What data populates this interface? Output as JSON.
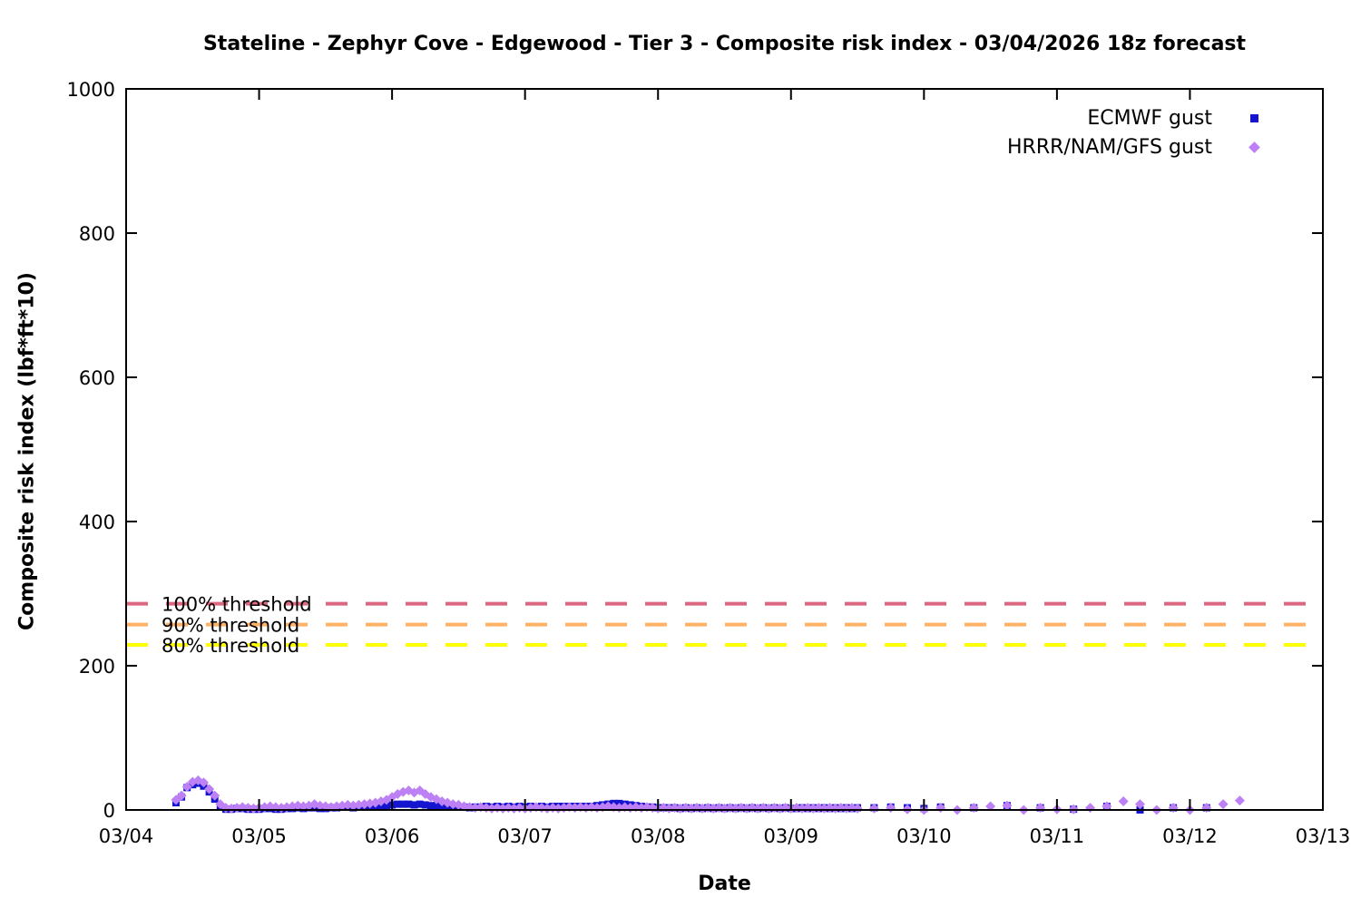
{
  "title": "Stateline - Zephyr Cove - Edgewood - Tier 3 - Composite risk index - 03/04/2026 18z forecast",
  "axes": {
    "x": {
      "label": "Date",
      "tick_labels": [
        "03/04",
        "03/05",
        "03/06",
        "03/07",
        "03/08",
        "03/09",
        "03/10",
        "03/11",
        "03/12",
        "03/13"
      ],
      "range_days": [
        0,
        9
      ]
    },
    "y": {
      "label": "Composite risk index (lbf*ft*10)",
      "tick_values": [
        0,
        200,
        400,
        600,
        800,
        1000
      ],
      "range": [
        0,
        1000
      ]
    }
  },
  "legend": {
    "position": "top-right-inside",
    "items": [
      {
        "label": "ECMWF gust",
        "marker": "square",
        "color": "#1515d0"
      },
      {
        "label": "HRRR/NAM/GFS gust",
        "marker": "diamond",
        "color": "#bd80f5"
      }
    ]
  },
  "thresholds": [
    {
      "label": "100% threshold",
      "value": 286,
      "color": "#dd6680"
    },
    {
      "label": "90% threshold",
      "value": 257,
      "color": "#ffb266"
    },
    {
      "label": "80% threshold",
      "value": 229,
      "color": "#ffff00"
    }
  ],
  "chart_data": {
    "type": "scatter",
    "title": "Stateline - Zephyr Cove - Edgewood - Tier 3 - Composite risk index - 03/04/2026 18z forecast",
    "xlabel": "Date",
    "ylabel": "Composite risk index (lbf*ft*10)",
    "x_unit": "fractional days after 03/04 00:00",
    "xlim_days": [
      0,
      9
    ],
    "ylim": [
      0,
      1000
    ],
    "grid": false,
    "series": [
      {
        "name": "ECMWF gust",
        "marker": "square",
        "color": "#1515d0",
        "dense": {
          "start_day": 0.375,
          "interval_hours": 1,
          "values": [
            10,
            18,
            31,
            35,
            37,
            33,
            25,
            15,
            5,
            1,
            1,
            2,
            2,
            1,
            1,
            1,
            2,
            2,
            1,
            1,
            2,
            2,
            3,
            2,
            3,
            3,
            2,
            2,
            3,
            3,
            4,
            4,
            3,
            4,
            4,
            5,
            5,
            6,
            6,
            7,
            8,
            8,
            8,
            7,
            8,
            7,
            6,
            6,
            5,
            5,
            4,
            4,
            4,
            3,
            4,
            4,
            5,
            4,
            5,
            4,
            5,
            4,
            5,
            4,
            5,
            4,
            5,
            4,
            5,
            5,
            5,
            5,
            5,
            5,
            5,
            5,
            6,
            7,
            8,
            9,
            9,
            8,
            7,
            6,
            5,
            4,
            4,
            3,
            3,
            3,
            3,
            2,
            3,
            2,
            3,
            2,
            3,
            2,
            3,
            2,
            3,
            2,
            3,
            2,
            3,
            2,
            3,
            2,
            3,
            2,
            3,
            2,
            2,
            3,
            2,
            3,
            2,
            3,
            2,
            3,
            2,
            3,
            2,
            3
          ]
        },
        "sparse_points": [
          [
            5.625,
            3
          ],
          [
            5.75,
            4
          ],
          [
            5.875,
            3
          ],
          [
            6.0,
            2
          ],
          [
            6.125,
            4
          ],
          [
            6.375,
            3
          ],
          [
            6.625,
            6
          ],
          [
            6.875,
            3
          ],
          [
            7.125,
            1
          ],
          [
            7.375,
            5
          ],
          [
            7.625,
            0
          ],
          [
            7.875,
            3
          ],
          [
            8.125,
            3
          ]
        ]
      },
      {
        "name": "HRRR/NAM/GFS gust",
        "marker": "diamond",
        "color": "#bd80f5",
        "dense": {
          "start_day": 0.375,
          "interval_hours": 1,
          "values": [
            14,
            20,
            32,
            39,
            41,
            38,
            29,
            20,
            8,
            3,
            2,
            3,
            4,
            3,
            2,
            3,
            4,
            5,
            4,
            3,
            4,
            5,
            6,
            5,
            6,
            8,
            6,
            5,
            4,
            5,
            6,
            7,
            6,
            7,
            8,
            9,
            10,
            12,
            14,
            18,
            22,
            25,
            27,
            24,
            27,
            22,
            18,
            15,
            12,
            10,
            8,
            7,
            5,
            4,
            3,
            4,
            3,
            2,
            3,
            2,
            3,
            2,
            3,
            2,
            3,
            4,
            3,
            2,
            3,
            2,
            3,
            4,
            3,
            4,
            3,
            4,
            3,
            4,
            5,
            4,
            3,
            4,
            3,
            4,
            3,
            4,
            3,
            2,
            3,
            2,
            3,
            2,
            3,
            2,
            3,
            2,
            3,
            2,
            3,
            2,
            3,
            2,
            3,
            2,
            3,
            2,
            3,
            2,
            3,
            2,
            3,
            2,
            3,
            2,
            3,
            2,
            3,
            2,
            3,
            2,
            3,
            2,
            3,
            2
          ]
        },
        "sparse_points": [
          [
            5.625,
            2
          ],
          [
            5.75,
            3
          ],
          [
            5.875,
            1
          ],
          [
            6.0,
            0
          ],
          [
            6.125,
            3
          ],
          [
            6.25,
            0
          ],
          [
            6.375,
            3
          ],
          [
            6.5,
            5
          ],
          [
            6.625,
            6
          ],
          [
            6.75,
            0
          ],
          [
            6.875,
            3
          ],
          [
            7.0,
            1
          ],
          [
            7.125,
            1
          ],
          [
            7.25,
            3
          ],
          [
            7.375,
            5
          ],
          [
            7.5,
            12
          ],
          [
            7.625,
            8
          ],
          [
            7.75,
            0
          ],
          [
            7.875,
            3
          ],
          [
            8.0,
            0
          ],
          [
            8.125,
            3
          ],
          [
            8.25,
            8
          ],
          [
            8.375,
            13
          ]
        ]
      }
    ],
    "threshold_lines": [
      {
        "label": "100% threshold",
        "value": 286,
        "color": "#dd6680",
        "style": "dashed"
      },
      {
        "label": "90% threshold",
        "value": 257,
        "color": "#ffb266",
        "style": "dashed"
      },
      {
        "label": "80% threshold",
        "value": 229,
        "color": "#ffff00",
        "style": "dashed"
      }
    ]
  }
}
